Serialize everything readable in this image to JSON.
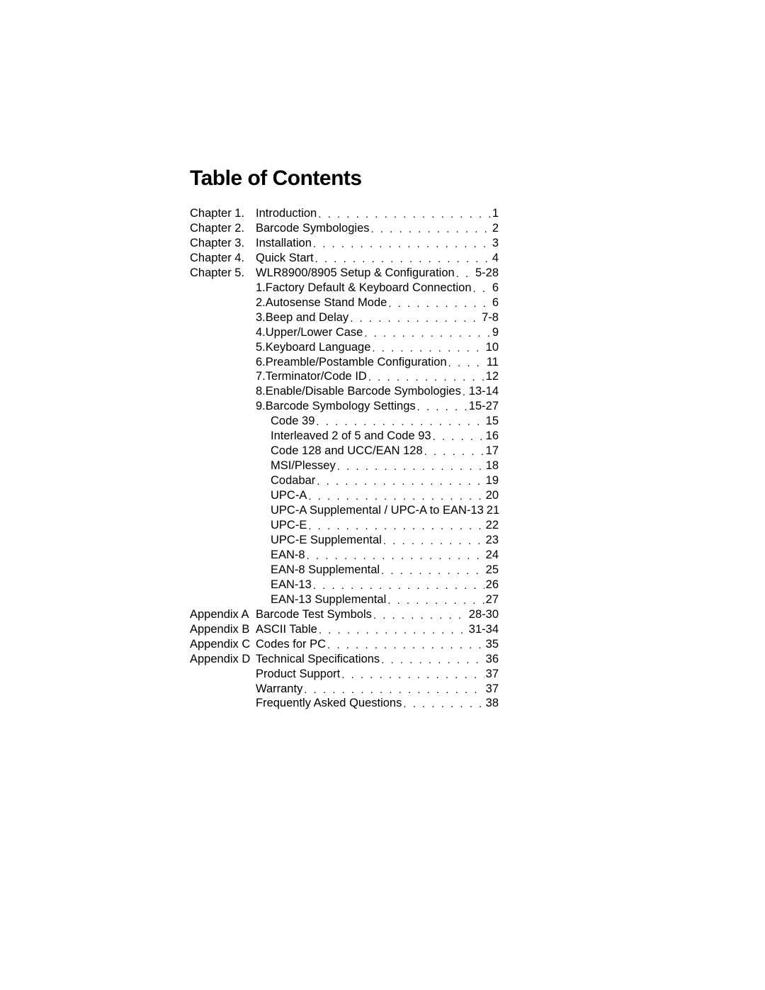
{
  "title": "Table of Contents",
  "rows": [
    {
      "label": "Chapter 1.",
      "indent": 0,
      "num": "",
      "txt": "Introduction",
      "pg": "1"
    },
    {
      "label": "Chapter 2.",
      "indent": 0,
      "num": "",
      "txt": "Barcode Symbologies",
      "pg": "2"
    },
    {
      "label": "Chapter 3.",
      "indent": 0,
      "num": "",
      "txt": "Installation",
      "pg": "3"
    },
    {
      "label": "Chapter 4.",
      "indent": 0,
      "num": "",
      "txt": "Quick Start",
      "pg": "4"
    },
    {
      "label": "Chapter 5.",
      "indent": 0,
      "num": "",
      "txt": "WLR8900/8905 Setup & Configuration",
      "pg": "5-28"
    },
    {
      "label": "",
      "indent": 0,
      "num": "1. ",
      "txt": "Factory Default & Keyboard Connection",
      "pg": "6"
    },
    {
      "label": "",
      "indent": 0,
      "num": "2. ",
      "txt": "Autosense Stand Mode",
      "pg": "6"
    },
    {
      "label": "",
      "indent": 0,
      "num": "3. ",
      "txt": "Beep and Delay",
      "pg": "7-8"
    },
    {
      "label": "",
      "indent": 0,
      "num": "4. ",
      "txt": "Upper/Lower Case",
      "pg": "9"
    },
    {
      "label": "",
      "indent": 0,
      "num": "5. ",
      "txt": "Keyboard Language",
      "pg": "10"
    },
    {
      "label": "",
      "indent": 0,
      "num": "6. ",
      "txt": "Preamble/Postamble Configuration",
      "pg": "11"
    },
    {
      "label": "",
      "indent": 0,
      "num": "7. ",
      "txt": "Terminator/Code ID",
      "pg": "12"
    },
    {
      "label": "",
      "indent": 0,
      "num": "8. ",
      "txt": "Enable/Disable Barcode Symbologies",
      "pg": "13-14"
    },
    {
      "label": "",
      "indent": 0,
      "num": "9. ",
      "txt": "Barcode Symbology Settings",
      "pg": "15-27"
    },
    {
      "label": "",
      "indent": 1,
      "num": "",
      "txt": "Code 39",
      "pg": "15"
    },
    {
      "label": "",
      "indent": 1,
      "num": "",
      "txt": "Interleaved 2 of 5 and Code 93",
      "pg": "16"
    },
    {
      "label": "",
      "indent": 1,
      "num": "",
      "txt": "Code 128 and UCC/EAN 128",
      "pg": "17"
    },
    {
      "label": "",
      "indent": 1,
      "num": "",
      "txt": "MSI/Plessey",
      "pg": "18"
    },
    {
      "label": "",
      "indent": 1,
      "num": "",
      "txt": "Codabar",
      "pg": "19"
    },
    {
      "label": "",
      "indent": 1,
      "num": "",
      "txt": "UPC-A",
      "pg": "20"
    },
    {
      "label": "",
      "indent": 1,
      "num": "",
      "txt": "UPC-A Supplemental / UPC-A to EAN-13",
      "pg": "21"
    },
    {
      "label": "",
      "indent": 1,
      "num": "",
      "txt": "UPC-E",
      "pg": "22"
    },
    {
      "label": "",
      "indent": 1,
      "num": "",
      "txt": "UPC-E Supplemental",
      "pg": "23"
    },
    {
      "label": "",
      "indent": 1,
      "num": "",
      "txt": "EAN-8",
      "pg": "24"
    },
    {
      "label": "",
      "indent": 1,
      "num": "",
      "txt": "EAN-8 Supplemental",
      "pg": "25"
    },
    {
      "label": "",
      "indent": 1,
      "num": "",
      "txt": "EAN-13",
      "pg": "26"
    },
    {
      "label": "",
      "indent": 1,
      "num": "",
      "txt": "EAN-13 Supplemental",
      "pg": "27"
    },
    {
      "label": "Appendix A",
      "indent": 0,
      "num": "",
      "txt": "Barcode Test Symbols",
      "pg": "28-30"
    },
    {
      "label": "Appendix B",
      "indent": 0,
      "num": "",
      "txt": "ASCII Table",
      "pg": "31-34"
    },
    {
      "label": "Appendix C",
      "indent": 0,
      "num": "",
      "txt": "Codes for PC",
      "pg": "35"
    },
    {
      "label": "Appendix D",
      "indent": 0,
      "num": "",
      "txt": "Technical Specifications",
      "pg": "36"
    },
    {
      "label": "",
      "indent": 0,
      "num": "",
      "txt": "Product Support",
      "pg": "37"
    },
    {
      "label": "",
      "indent": 0,
      "num": "",
      "txt": "Warranty",
      "pg": "37"
    },
    {
      "label": "",
      "indent": 0,
      "num": "",
      "txt": "Frequently Asked Questions",
      "pg": "38"
    }
  ]
}
